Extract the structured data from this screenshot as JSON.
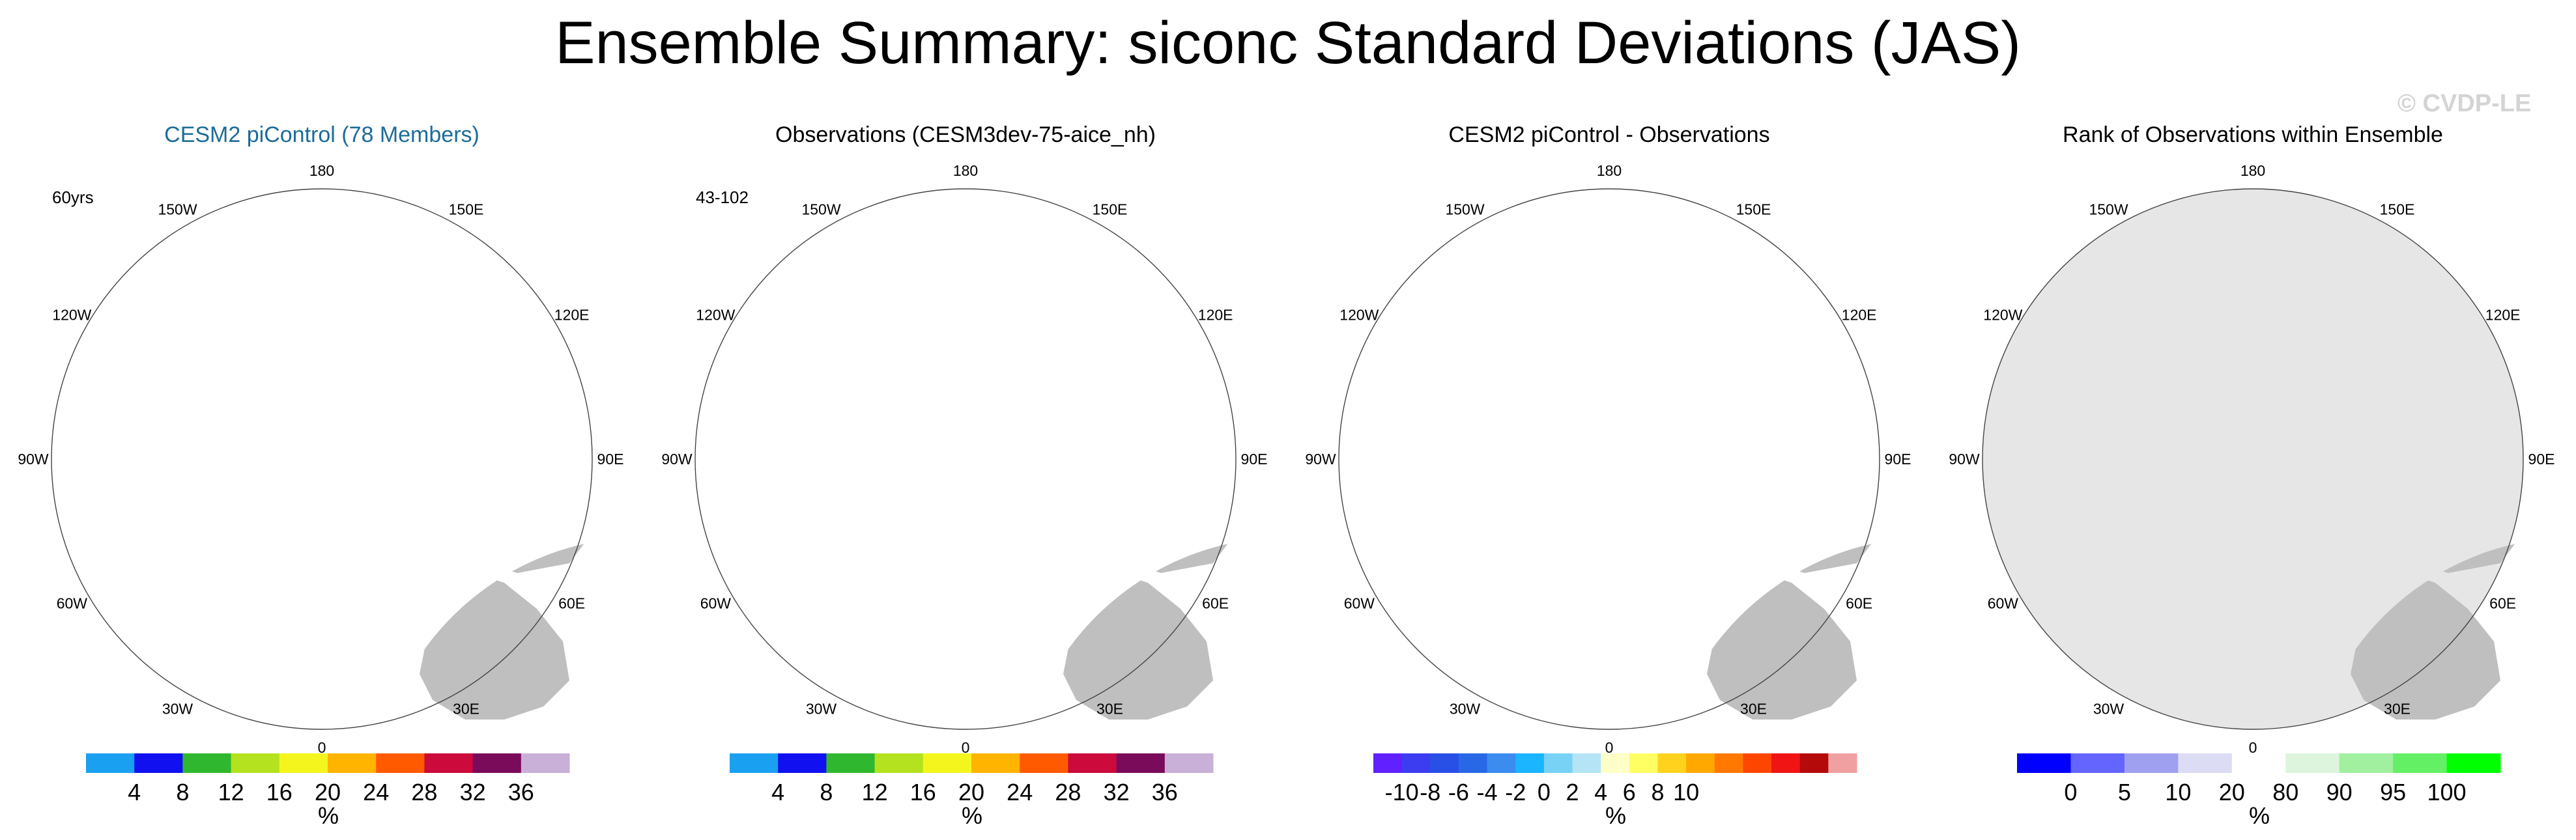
{
  "title": "Ensemble Summary: siconc Standard Deviations (JAS)",
  "watermark": "© CVDP-LE",
  "colors": {
    "land": "#bfbfbf",
    "polar_hole": "#e6e6e6",
    "seq": [
      "#1aa0f0",
      "#1010f0",
      "#2fb82f",
      "#b4e21e",
      "#f5f51e",
      "#ffb400",
      "#ff5a00",
      "#cc0a3c",
      "#7a0a5a",
      "#c8b0d8"
    ],
    "div": [
      "#6020ff",
      "#3c3cf0",
      "#2850e6",
      "#2868e6",
      "#3c8cf0",
      "#1ab4ff",
      "#78d2f5",
      "#b4e4f5",
      "#ffffc8",
      "#ffff64",
      "#ffd21e",
      "#ffa800",
      "#ff7800",
      "#ff4600",
      "#f01414",
      "#b40a0a",
      "#f0a0a0"
    ],
    "rank": [
      "#0000ff",
      "#6464ff",
      "#a0a0f0",
      "#dcdcf5",
      "#ffffff",
      "#dcf5dc",
      "#a0f0a0",
      "#64f064",
      "#00ff00"
    ]
  },
  "chart_data": [
    {
      "type": "map",
      "title": "CESM2 piControl (78 Members)",
      "note": "60yrs",
      "lon_labels": [
        "180",
        "150E",
        "120E",
        "90E",
        "60E",
        "30E",
        "0",
        "30W",
        "60W",
        "90W",
        "120W",
        "150W"
      ],
      "colorbar": {
        "type": "sequential",
        "ticks": [
          "4",
          "8",
          "12",
          "16",
          "20",
          "24",
          "28",
          "32",
          "36"
        ],
        "unit": "%"
      }
    },
    {
      "type": "map",
      "title": "Observations (CESM3dev-75-aice_nh)",
      "note": "43-102",
      "lon_labels": [
        "180",
        "150E",
        "120E",
        "90E",
        "60E",
        "30E",
        "0",
        "30W",
        "60W",
        "90W",
        "120W",
        "150W"
      ],
      "colorbar": {
        "type": "sequential",
        "ticks": [
          "4",
          "8",
          "12",
          "16",
          "20",
          "24",
          "28",
          "32",
          "36"
        ],
        "unit": "%"
      }
    },
    {
      "type": "map",
      "title": "CESM2 piControl - Observations",
      "note": "",
      "lon_labels": [
        "180",
        "150E",
        "120E",
        "90E",
        "60E",
        "30E",
        "0",
        "30W",
        "60W",
        "90W",
        "120W",
        "150W"
      ],
      "colorbar": {
        "type": "diverging",
        "ticks": [
          "-10",
          "-8",
          "-6",
          "-4",
          "-2",
          "0",
          "2",
          "4",
          "6",
          "8",
          "10"
        ],
        "unit": "%"
      }
    },
    {
      "type": "map",
      "title": "Rank of Observations within Ensemble",
      "note": "",
      "lon_labels": [
        "180",
        "150E",
        "120E",
        "90E",
        "60E",
        "30E",
        "0",
        "30W",
        "60W",
        "90W",
        "120W",
        "150W"
      ],
      "colorbar": {
        "type": "rank",
        "ticks": [
          "0",
          "5",
          "10",
          "20",
          "80",
          "90",
          "95",
          "100"
        ],
        "unit": "%"
      }
    }
  ]
}
